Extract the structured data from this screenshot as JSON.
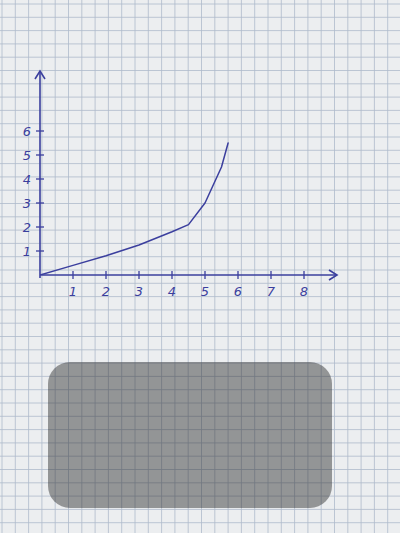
{
  "chart_data": {
    "type": "line",
    "x": [
      0,
      1,
      2,
      3,
      4,
      4.5,
      5,
      5.5,
      5.7
    ],
    "values": [
      0,
      0.4,
      0.8,
      1.25,
      1.8,
      2.1,
      3.0,
      4.5,
      5.5
    ],
    "color": "#3b3f9e",
    "xlim": [
      0,
      9
    ],
    "ylim": [
      0,
      8.5
    ],
    "xticks": [
      1,
      2,
      3,
      4,
      5,
      6,
      7,
      8
    ],
    "yticks": [
      1,
      2,
      3,
      4,
      5,
      6
    ]
  }
}
